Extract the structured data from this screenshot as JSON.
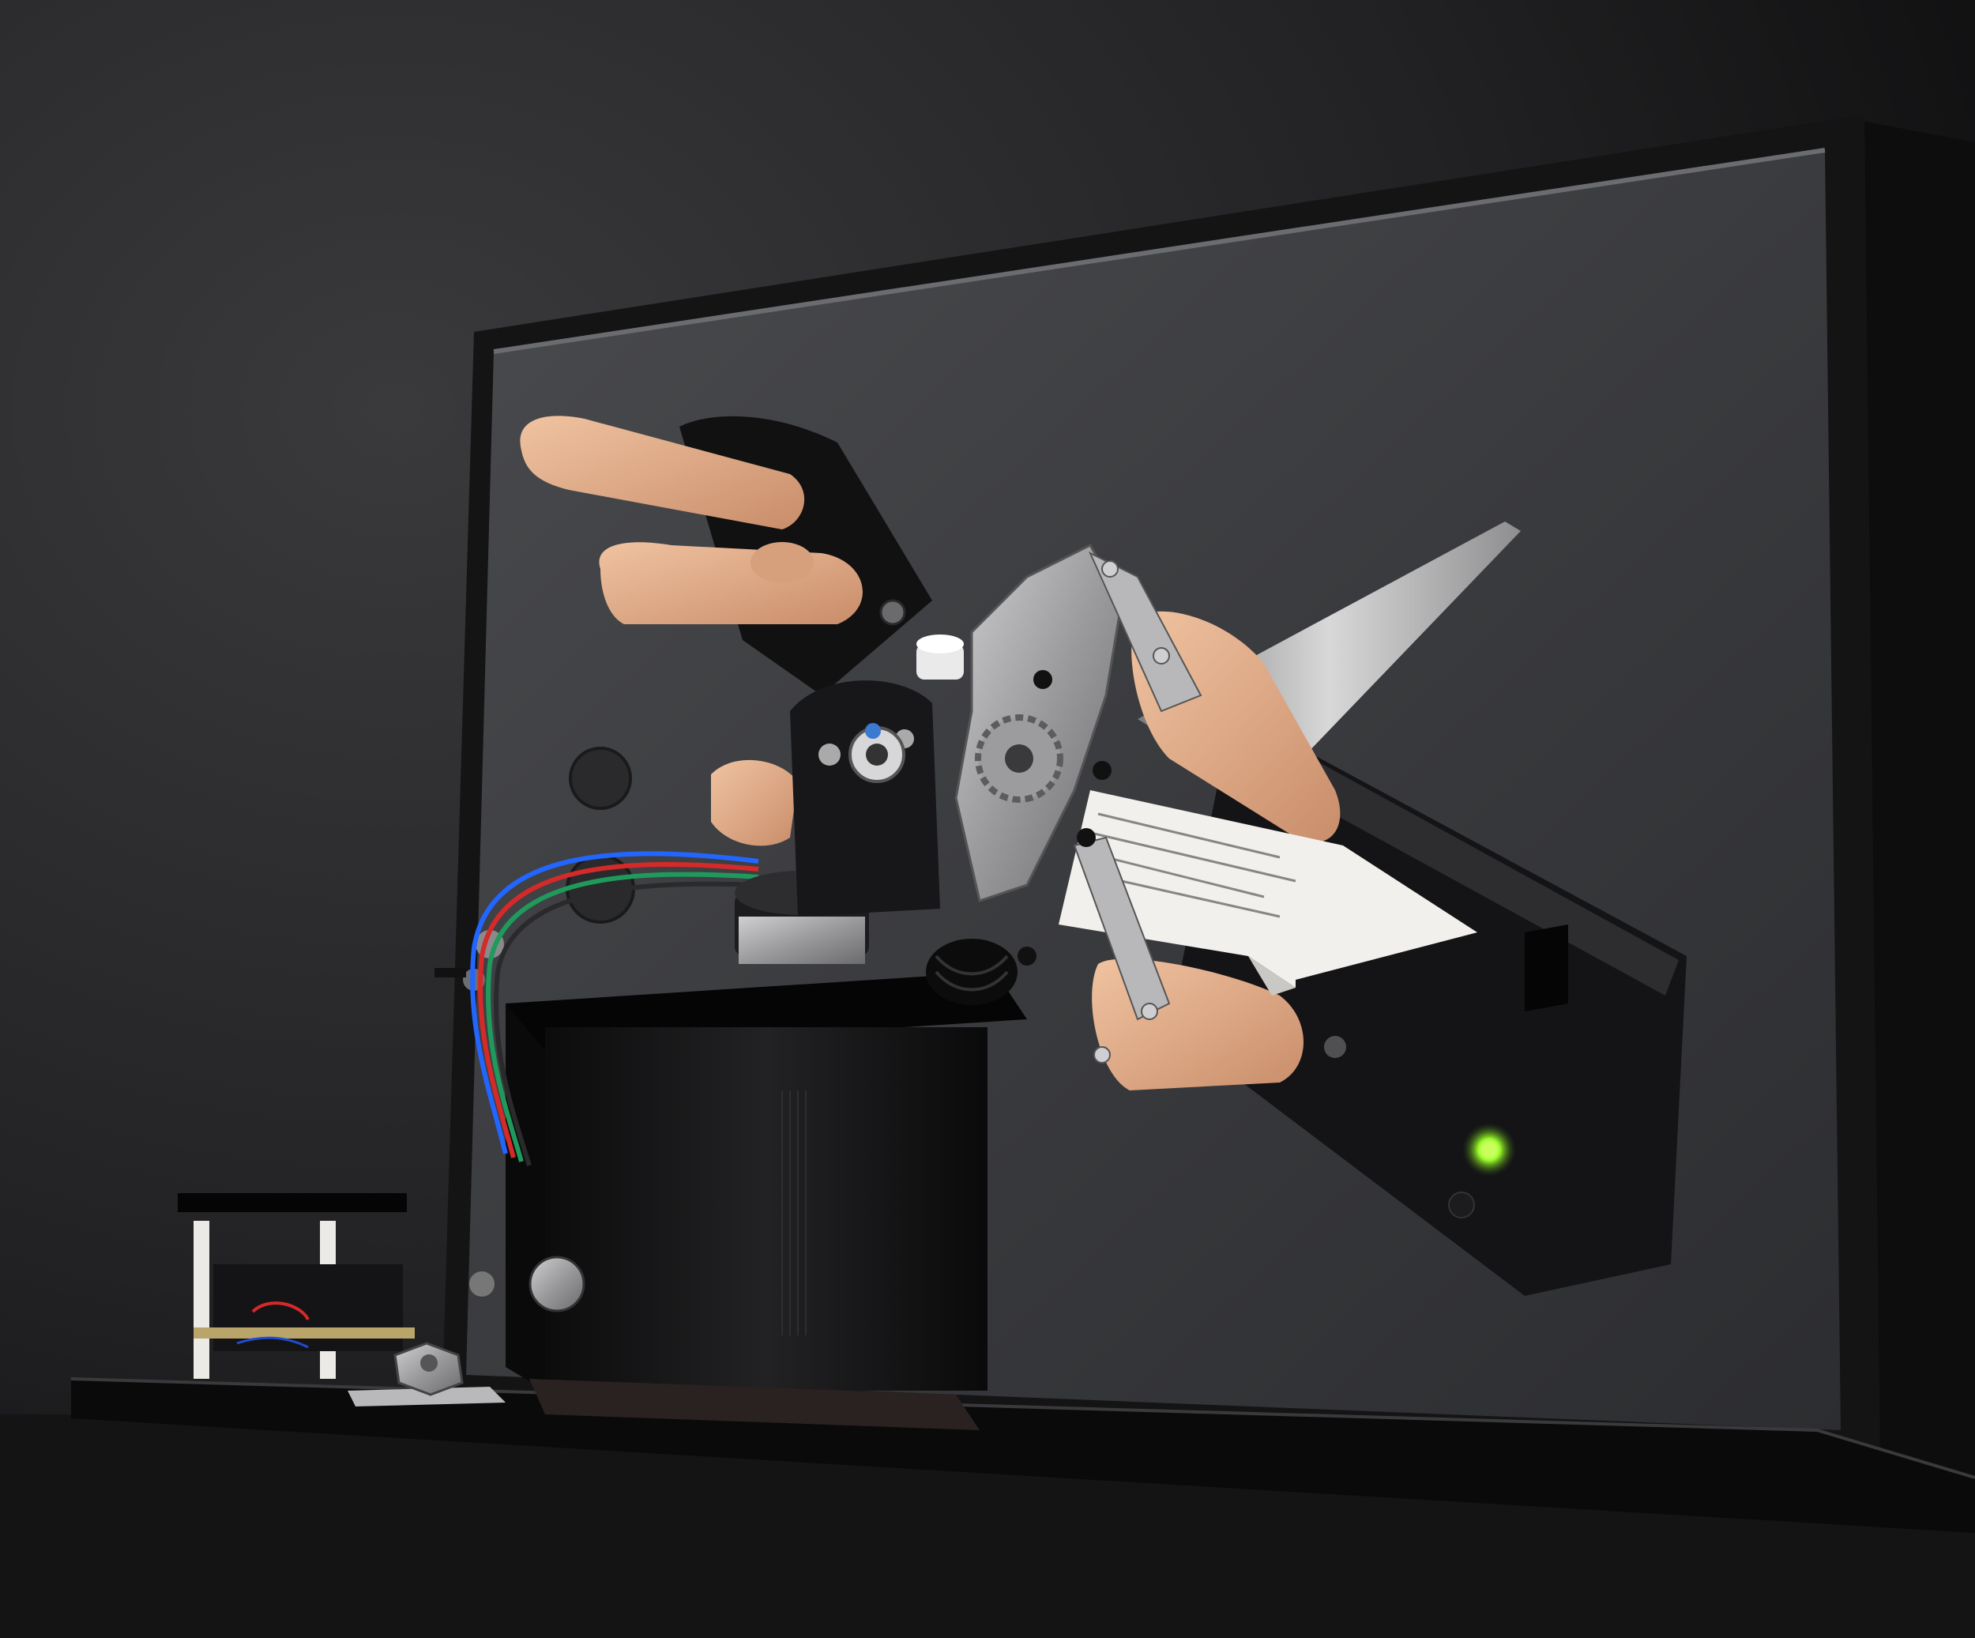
{
  "scene": {
    "subject": "robotic-arm-scissors-installation",
    "palette": {
      "background": "#1f1f20",
      "panel": "#3b3c3e",
      "panel_frame": "#151516",
      "metal": "#a9a9ab",
      "skin": "#e3b18f",
      "blade": "#c5c5c5",
      "paper": "#f1f0ec",
      "led": "#9cff2a",
      "wire_colors": [
        "#2266ff",
        "#d42a2a",
        "#1f9a5c",
        "#222222"
      ]
    }
  }
}
